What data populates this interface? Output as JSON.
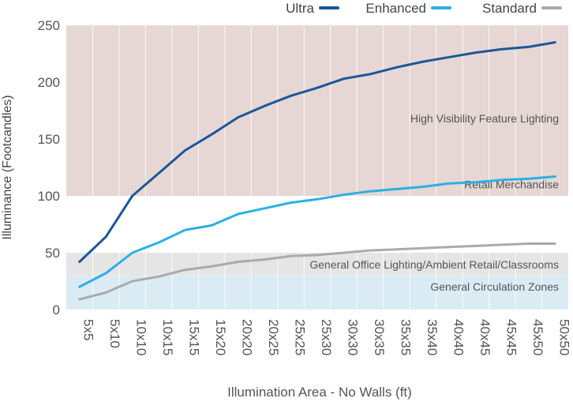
{
  "chart_data": {
    "type": "line",
    "xlabel": "Illumination Area - No Walls (ft)",
    "ylabel": "Illuminance (Footcandles)",
    "ylim": [
      0,
      250
    ],
    "yticks": [
      0,
      50,
      100,
      150,
      200,
      250
    ],
    "grid": true,
    "legend_position": "top-right",
    "categories": [
      "5x5",
      "5x10",
      "10x10",
      "10x15",
      "15x15",
      "15x20",
      "20x20",
      "20x25",
      "25x25",
      "25x30",
      "30x30",
      "30x35",
      "35x35",
      "35x40",
      "40x40",
      "40x45",
      "45x45",
      "45x50",
      "50x50"
    ],
    "series": [
      {
        "name": "Ultra",
        "color": "#1b5799",
        "values": [
          42,
          64,
          100,
          120,
          140,
          154,
          169,
          179,
          188,
          195,
          203,
          207,
          213,
          218,
          222,
          226,
          229,
          231,
          235
        ]
      },
      {
        "name": "Enhanced",
        "color": "#2ab0e4",
        "values": [
          20,
          32,
          50,
          59,
          70,
          74,
          84,
          89,
          94,
          97,
          101,
          104,
          106,
          108,
          111,
          112,
          114,
          115,
          117
        ]
      },
      {
        "name": "Standard",
        "color": "#aaaaaa",
        "values": [
          9,
          15,
          25,
          29,
          35,
          38,
          42,
          44,
          47,
          48,
          50,
          52,
          53,
          54,
          55,
          56,
          57,
          58,
          58
        ]
      }
    ],
    "bands": [
      {
        "label": "High Visibility Feature Lighting",
        "from": 100,
        "to": 250,
        "color": "#e6d7d4"
      },
      {
        "label": "Retail Merchandise",
        "from": 50,
        "to": 100,
        "color": "#ffffff"
      },
      {
        "label": "General Office Lighting/Ambient Retail/Classrooms",
        "from": 30,
        "to": 50,
        "color": "#e5e5e5"
      },
      {
        "label": "General Circulation Zones",
        "from": 0,
        "to": 30,
        "color": "#dbebf4"
      }
    ]
  }
}
